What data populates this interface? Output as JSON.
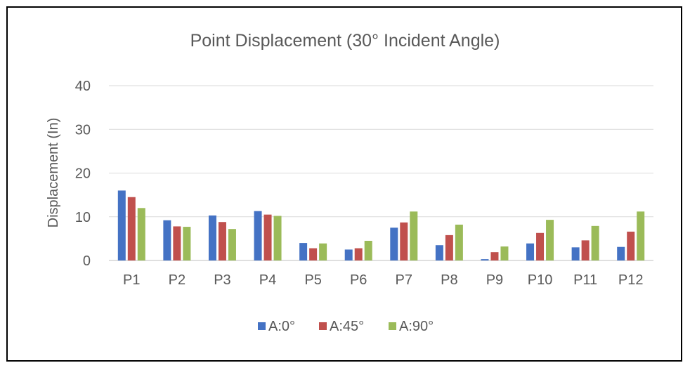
{
  "chart_data": {
    "type": "bar",
    "title": "Point Displacement (30° Incident Angle)",
    "xlabel": "",
    "ylabel": "Displacement (In)",
    "ylim": [
      0,
      40
    ],
    "yticks": [
      0,
      10,
      20,
      30,
      40
    ],
    "grid": true,
    "legend_position": "bottom",
    "categories": [
      "P1",
      "P2",
      "P3",
      "P4",
      "P5",
      "P6",
      "P7",
      "P8",
      "P9",
      "P10",
      "P11",
      "P12"
    ],
    "series": [
      {
        "name": "A:0°",
        "color": "#4472C4",
        "values": [
          16.0,
          9.2,
          10.3,
          11.3,
          4.0,
          2.5,
          7.5,
          3.5,
          0.3,
          3.9,
          3.0,
          3.1
        ]
      },
      {
        "name": "A:45°",
        "color": "#C0504D",
        "values": [
          14.5,
          7.8,
          8.8,
          10.5,
          2.8,
          2.8,
          8.7,
          5.8,
          1.9,
          6.3,
          4.6,
          6.6
        ]
      },
      {
        "name": "A:90°",
        "color": "#9BBB59",
        "values": [
          12.0,
          7.7,
          7.2,
          10.2,
          3.9,
          4.5,
          11.2,
          8.2,
          3.2,
          9.3,
          7.9,
          11.2
        ]
      }
    ]
  }
}
